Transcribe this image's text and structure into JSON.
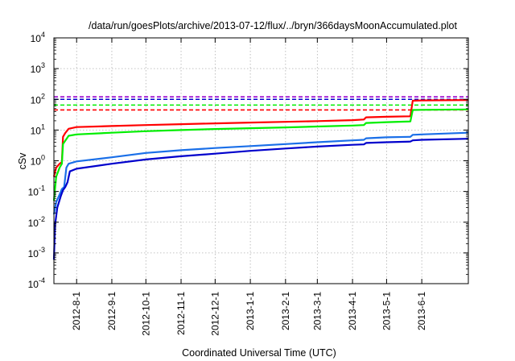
{
  "chart_data": {
    "type": "line",
    "title": "/data/run/goesPlots/archive/2013-07-12/flux/../bryn/366daysMoonAccumulated.plot",
    "xlabel": "Coordinated Universal Time (UTC)",
    "ylabel": "cSv",
    "y_scale": "log",
    "ylim": [
      0.0001,
      10000
    ],
    "y_ticks": [
      {
        "base": "10",
        "exp": "-4",
        "value": 0.0001
      },
      {
        "base": "10",
        "exp": "-3",
        "value": 0.001
      },
      {
        "base": "10",
        "exp": "-2",
        "value": 0.01
      },
      {
        "base": "10",
        "exp": "-1",
        "value": 0.1
      },
      {
        "base": "10",
        "exp": "0",
        "value": 1
      },
      {
        "base": "10",
        "exp": "1",
        "value": 10
      },
      {
        "base": "10",
        "exp": "2",
        "value": 100
      },
      {
        "base": "10",
        "exp": "3",
        "value": 1000
      },
      {
        "base": "10",
        "exp": "4",
        "value": 10000
      }
    ],
    "xlim": [
      "2012-07-12",
      "2013-07-12"
    ],
    "x_ticks": [
      "2012-8-1",
      "2012-9-1",
      "2012-10-1",
      "2012-11-1",
      "2012-12-1",
      "2013-1-1",
      "2013-2-1",
      "2013-3-1",
      "2013-4-1",
      "2013-5-1",
      "2013-6-1"
    ],
    "x_tick_dates": [
      "2012-08-01",
      "2012-09-01",
      "2012-10-01",
      "2012-11-01",
      "2012-12-01",
      "2013-01-01",
      "2013-02-01",
      "2013-03-01",
      "2013-04-01",
      "2013-05-01",
      "2013-06-01"
    ],
    "grid": true,
    "legend": "none",
    "series": [
      {
        "color": "#ff0000",
        "style": "solid",
        "points": [
          [
            "2012-07-12",
            0.3
          ],
          [
            "2012-07-14",
            0.6
          ],
          [
            "2012-07-17",
            0.8
          ],
          [
            "2012-07-19",
            0.9
          ],
          [
            "2012-07-20",
            6
          ],
          [
            "2012-07-22",
            8
          ],
          [
            "2012-07-25",
            11
          ],
          [
            "2012-08-01",
            12.5
          ],
          [
            "2012-09-01",
            13.5
          ],
          [
            "2012-10-01",
            14.5
          ],
          [
            "2012-11-01",
            15.5
          ],
          [
            "2012-12-01",
            16.5
          ],
          [
            "2013-01-01",
            17.5
          ],
          [
            "2013-02-01",
            18.5
          ],
          [
            "2013-03-01",
            19.5
          ],
          [
            "2013-04-01",
            21
          ],
          [
            "2013-04-11",
            22
          ],
          [
            "2013-04-13",
            26
          ],
          [
            "2013-05-01",
            27
          ],
          [
            "2013-05-22",
            28
          ],
          [
            "2013-05-24",
            90
          ],
          [
            "2013-06-01",
            92
          ],
          [
            "2013-07-12",
            95
          ]
        ]
      },
      {
        "color": "#00ee00",
        "style": "solid",
        "points": [
          [
            "2012-07-12",
            0.05
          ],
          [
            "2012-07-14",
            0.3
          ],
          [
            "2012-07-17",
            0.6
          ],
          [
            "2012-07-19",
            0.8
          ],
          [
            "2012-07-20",
            3.5
          ],
          [
            "2012-07-22",
            4.5
          ],
          [
            "2012-07-25",
            6.5
          ],
          [
            "2012-08-01",
            7.2
          ],
          [
            "2012-09-01",
            8.2
          ],
          [
            "2012-10-01",
            9.2
          ],
          [
            "2012-11-01",
            10
          ],
          [
            "2012-12-01",
            10.8
          ],
          [
            "2013-01-01",
            11.5
          ],
          [
            "2013-02-01",
            12.2
          ],
          [
            "2013-03-01",
            13
          ],
          [
            "2013-04-01",
            14
          ],
          [
            "2013-04-11",
            14.5
          ],
          [
            "2013-04-13",
            17
          ],
          [
            "2013-05-01",
            18
          ],
          [
            "2013-05-22",
            19
          ],
          [
            "2013-05-24",
            45
          ],
          [
            "2013-06-01",
            45.5
          ],
          [
            "2013-07-12",
            47
          ]
        ]
      },
      {
        "color": "#1a6fe8",
        "style": "solid",
        "points": [
          [
            "2012-07-12",
            0.018
          ],
          [
            "2012-07-14",
            0.045
          ],
          [
            "2012-07-17",
            0.08
          ],
          [
            "2012-07-19",
            0.12
          ],
          [
            "2012-07-21",
            0.14
          ],
          [
            "2012-07-23",
            0.6
          ],
          [
            "2012-07-25",
            0.8
          ],
          [
            "2012-08-01",
            0.95
          ],
          [
            "2012-09-01",
            1.3
          ],
          [
            "2012-10-01",
            1.8
          ],
          [
            "2012-11-01",
            2.2
          ],
          [
            "2012-12-01",
            2.6
          ],
          [
            "2013-01-01",
            3.0
          ],
          [
            "2013-02-01",
            3.5
          ],
          [
            "2013-03-01",
            4.0
          ],
          [
            "2013-04-01",
            4.6
          ],
          [
            "2013-04-11",
            4.8
          ],
          [
            "2013-04-13",
            5.4
          ],
          [
            "2013-05-01",
            5.8
          ],
          [
            "2013-05-22",
            6.0
          ],
          [
            "2013-05-24",
            7.0
          ],
          [
            "2013-06-01",
            7.2
          ],
          [
            "2013-07-12",
            8.2
          ]
        ]
      },
      {
        "color": "#0000cc",
        "style": "solid",
        "points": [
          [
            "2012-07-12",
            0.0006
          ],
          [
            "2012-07-13",
            0.008
          ],
          [
            "2012-07-15",
            0.03
          ],
          [
            "2012-07-18",
            0.07
          ],
          [
            "2012-07-20",
            0.11
          ],
          [
            "2012-07-22",
            0.14
          ],
          [
            "2012-07-24",
            0.2
          ],
          [
            "2012-07-26",
            0.45
          ],
          [
            "2012-08-01",
            0.55
          ],
          [
            "2012-09-01",
            0.8
          ],
          [
            "2012-10-01",
            1.1
          ],
          [
            "2012-11-01",
            1.4
          ],
          [
            "2012-12-01",
            1.7
          ],
          [
            "2013-01-01",
            2.1
          ],
          [
            "2013-02-01",
            2.5
          ],
          [
            "2013-03-01",
            2.9
          ],
          [
            "2013-04-01",
            3.3
          ],
          [
            "2013-04-11",
            3.4
          ],
          [
            "2013-04-13",
            3.8
          ],
          [
            "2013-05-01",
            4.0
          ],
          [
            "2013-05-22",
            4.2
          ],
          [
            "2013-05-24",
            4.6
          ],
          [
            "2013-06-01",
            4.8
          ],
          [
            "2013-07-12",
            5.2
          ]
        ]
      }
    ],
    "reference_lines": [
      {
        "color": "#9900cc",
        "style": "dashed",
        "value": 120
      },
      {
        "color": "#0000cc",
        "style": "dashed",
        "value": 100
      },
      {
        "color": "#00ee00",
        "style": "dashed",
        "value": 65
      },
      {
        "color": "#ff0000",
        "style": "dashed",
        "value": 45
      }
    ]
  }
}
